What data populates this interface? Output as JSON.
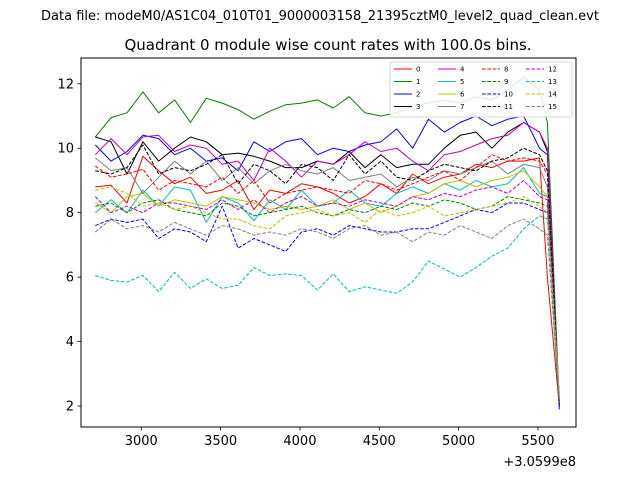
{
  "chart_data": {
    "type": "line",
    "suptitle": "Data file: modeM0/AS1C04_010T01_9000003158_21395cztM0_level2_quad_clean.evt",
    "title": "Quadrant 0 module wise count rates with 100.0s bins.",
    "xlabel": "",
    "ylabel": "",
    "x_offset_label": "+3.0599e8",
    "xlim": [
      2620,
      5740
    ],
    "ylim": [
      1.35,
      12.8
    ],
    "xticks": [
      3000,
      3500,
      4000,
      4500,
      5000,
      5500
    ],
    "xtick_labels": [
      "3000",
      "3500",
      "4000",
      "4500",
      "5000",
      "5500"
    ],
    "yticks": [
      2,
      4,
      6,
      8,
      10,
      12
    ],
    "ytick_labels": [
      "2",
      "4",
      "6",
      "8",
      "10",
      "12"
    ],
    "grid": false,
    "legend_position": "top-right",
    "x": [
      2710,
      2810,
      2910,
      3010,
      3110,
      3210,
      3310,
      3410,
      3510,
      3610,
      3710,
      3810,
      3910,
      4010,
      4110,
      4210,
      4310,
      4410,
      4510,
      4610,
      4710,
      4810,
      4910,
      5010,
      5110,
      5210,
      5310,
      5410,
      5510,
      5560,
      5635
    ],
    "series": [
      {
        "name": "0",
        "color": "#ff0000",
        "dash": "solid",
        "values": [
          8.8,
          8.85,
          8.3,
          9.75,
          9.3,
          8.9,
          9.1,
          8.6,
          8.7,
          9.0,
          8.1,
          8.7,
          8.6,
          8.9,
          8.8,
          8.6,
          8.3,
          8.5,
          8.9,
          8.6,
          9.2,
          8.9,
          9.1,
          9.2,
          9.5,
          9.4,
          9.6,
          9.6,
          9.7,
          6.0,
          2.0
        ]
      },
      {
        "name": "1",
        "color": "#008000",
        "dash": "solid",
        "values": [
          10.35,
          10.95,
          11.1,
          11.75,
          11.1,
          11.5,
          10.8,
          11.55,
          11.4,
          11.2,
          10.9,
          11.15,
          11.35,
          11.4,
          11.5,
          11.25,
          11.6,
          11.1,
          11.0,
          11.1,
          11.3,
          11.4,
          11.5,
          11.4,
          11.6,
          11.5,
          11.8,
          12.2,
          11.8,
          10.8,
          2.1
        ]
      },
      {
        "name": "2",
        "color": "#0000ff",
        "dash": "solid",
        "values": [
          10.1,
          9.6,
          9.9,
          10.4,
          10.3,
          9.8,
          10.0,
          9.6,
          9.7,
          9.3,
          10.2,
          9.9,
          10.2,
          10.3,
          9.8,
          10.0,
          9.9,
          10.1,
          10.2,
          10.6,
          10.0,
          10.9,
          10.5,
          10.8,
          11.0,
          10.7,
          10.9,
          11.0,
          10.0,
          9.8,
          1.9
        ]
      },
      {
        "name": "3",
        "color": "#000000",
        "dash": "solid",
        "values": [
          10.35,
          10.2,
          9.2,
          10.2,
          9.6,
          10.0,
          10.35,
          10.2,
          9.8,
          9.85,
          9.75,
          9.6,
          9.4,
          9.4,
          9.6,
          9.5,
          9.9,
          9.4,
          9.8,
          9.4,
          9.5,
          9.5,
          10.0,
          10.4,
          10.5,
          10.0,
          10.5,
          10.8,
          10.5,
          9.9,
          2.0
        ]
      },
      {
        "name": "4",
        "color": "#bf00bf",
        "dash": "solid",
        "values": [
          9.8,
          10.3,
          9.8,
          10.35,
          10.4,
          9.9,
          10.1,
          10.0,
          9.5,
          9.6,
          9.0,
          10.0,
          9.6,
          9.1,
          9.6,
          9.5,
          9.8,
          10.2,
          9.9,
          10.0,
          9.6,
          9.3,
          9.8,
          9.9,
          10.1,
          10.3,
          10.4,
          10.8,
          10.5,
          10.0,
          1.95
        ]
      },
      {
        "name": "5",
        "color": "#00bfbf",
        "dash": "solid",
        "values": [
          8.0,
          8.4,
          8.0,
          8.7,
          8.2,
          8.8,
          8.7,
          7.7,
          8.5,
          8.3,
          7.75,
          8.4,
          8.1,
          8.7,
          8.2,
          8.3,
          8.7,
          8.3,
          8.2,
          8.6,
          8.8,
          8.6,
          8.9,
          8.7,
          9.0,
          8.8,
          8.9,
          9.4,
          8.6,
          8.5,
          2.2
        ]
      },
      {
        "name": "6",
        "color": "#bfbf00",
        "dash": "solid",
        "values": [
          8.3,
          8.0,
          8.5,
          8.6,
          8.2,
          8.4,
          8.3,
          8.2,
          8.5,
          8.4,
          8.3,
          8.1,
          8.2,
          8.1,
          8.2,
          8.4,
          8.1,
          8.3,
          8.0,
          8.2,
          8.5,
          8.6,
          8.9,
          9.0,
          8.8,
          9.0,
          9.1,
          9.3,
          8.8,
          8.5,
          2.2
        ]
      },
      {
        "name": "7",
        "color": "#808080",
        "dash": "solid",
        "values": [
          9.7,
          9.3,
          9.4,
          8.6,
          9.1,
          9.6,
          9.2,
          9.6,
          9.0,
          9.4,
          8.9,
          9.3,
          9.5,
          9.3,
          9.2,
          9.4,
          9.0,
          9.1,
          9.2,
          8.8,
          9.1,
          9.0,
          9.3,
          9.2,
          9.4,
          9.6,
          9.2,
          9.5,
          9.4,
          8.8,
          2.3
        ]
      },
      {
        "name": "8",
        "color": "#ff0000",
        "dash": "dashed",
        "values": [
          9.45,
          9.1,
          9.2,
          9.35,
          8.7,
          9.0,
          8.9,
          8.8,
          9.1,
          8.6,
          9.0,
          8.3,
          8.6,
          8.7,
          8.8,
          8.7,
          8.6,
          9.0,
          8.9,
          8.7,
          8.9,
          9.1,
          9.3,
          9.0,
          9.4,
          9.8,
          9.6,
          9.7,
          9.6,
          9.2,
          2.1
        ]
      },
      {
        "name": "9",
        "color": "#008000",
        "dash": "dashed",
        "values": [
          8.2,
          8.3,
          8.0,
          8.3,
          8.4,
          8.1,
          8.0,
          7.9,
          8.3,
          8.2,
          7.9,
          8.0,
          8.1,
          8.2,
          8.0,
          7.9,
          8.1,
          8.0,
          8.2,
          8.1,
          8.3,
          8.2,
          8.4,
          8.3,
          8.1,
          8.2,
          8.5,
          8.4,
          8.3,
          8.2,
          2.0
        ]
      },
      {
        "name": "10",
        "color": "#0000ff",
        "dash": "dashed",
        "values": [
          7.6,
          7.8,
          7.7,
          7.8,
          7.2,
          7.5,
          7.4,
          7.1,
          8.2,
          6.9,
          7.2,
          7.0,
          6.8,
          7.4,
          7.5,
          7.3,
          7.6,
          7.5,
          7.4,
          7.4,
          7.5,
          7.5,
          7.7,
          7.9,
          8.1,
          8.0,
          8.3,
          8.3,
          8.1,
          8.0,
          2.0
        ]
      },
      {
        "name": "11",
        "color": "#000000",
        "dash": "dashed",
        "values": [
          9.3,
          9.2,
          9.4,
          10.1,
          9.2,
          9.4,
          9.3,
          9.5,
          9.8,
          8.9,
          9.5,
          9.3,
          8.9,
          9.5,
          9.4,
          9.0,
          9.8,
          9.2,
          9.6,
          9.1,
          9.0,
          9.3,
          9.5,
          9.4,
          9.3,
          9.6,
          9.7,
          10.0,
          9.8,
          9.3,
          2.05
        ]
      },
      {
        "name": "12",
        "color": "#bf00bf",
        "dash": "dashed",
        "values": [
          8.5,
          8.0,
          8.2,
          8.0,
          8.3,
          8.3,
          8.2,
          8.1,
          8.4,
          8.1,
          8.4,
          8.0,
          8.3,
          8.5,
          8.2,
          8.3,
          8.2,
          8.4,
          8.3,
          8.2,
          8.5,
          8.4,
          8.6,
          8.5,
          8.7,
          8.8,
          8.6,
          9.0,
          8.5,
          8.4,
          2.2
        ]
      },
      {
        "name": "13",
        "color": "#00bfbf",
        "dash": "dashed",
        "values": [
          6.05,
          5.9,
          5.85,
          6.05,
          5.55,
          6.15,
          5.65,
          5.95,
          5.65,
          5.75,
          6.3,
          6.05,
          6.1,
          6.05,
          5.6,
          6.1,
          5.55,
          5.7,
          5.6,
          5.5,
          5.85,
          6.5,
          6.25,
          6.0,
          6.3,
          6.65,
          6.9,
          7.5,
          7.9,
          7.8,
          2.4
        ]
      },
      {
        "name": "14",
        "color": "#bfbf00",
        "dash": "dashed",
        "values": [
          8.7,
          8.8,
          8.6,
          8.2,
          8.3,
          8.1,
          8.2,
          8.0,
          7.8,
          7.8,
          7.6,
          7.5,
          7.9,
          8.0,
          8.1,
          7.9,
          8.0,
          7.7,
          8.1,
          7.9,
          8.0,
          8.2,
          7.9,
          8.0,
          8.1,
          8.2,
          8.3,
          8.5,
          8.2,
          8.0,
          2.3
        ]
      },
      {
        "name": "15",
        "color": "#808080",
        "dash": "dashed",
        "values": [
          7.4,
          7.8,
          7.5,
          7.6,
          7.4,
          7.7,
          7.5,
          7.3,
          7.6,
          7.5,
          7.3,
          7.4,
          7.3,
          7.5,
          7.4,
          7.2,
          7.5,
          7.6,
          7.3,
          7.4,
          7.1,
          7.4,
          7.3,
          7.6,
          7.4,
          7.2,
          7.6,
          7.8,
          7.5,
          7.3,
          2.1
        ]
      }
    ]
  }
}
